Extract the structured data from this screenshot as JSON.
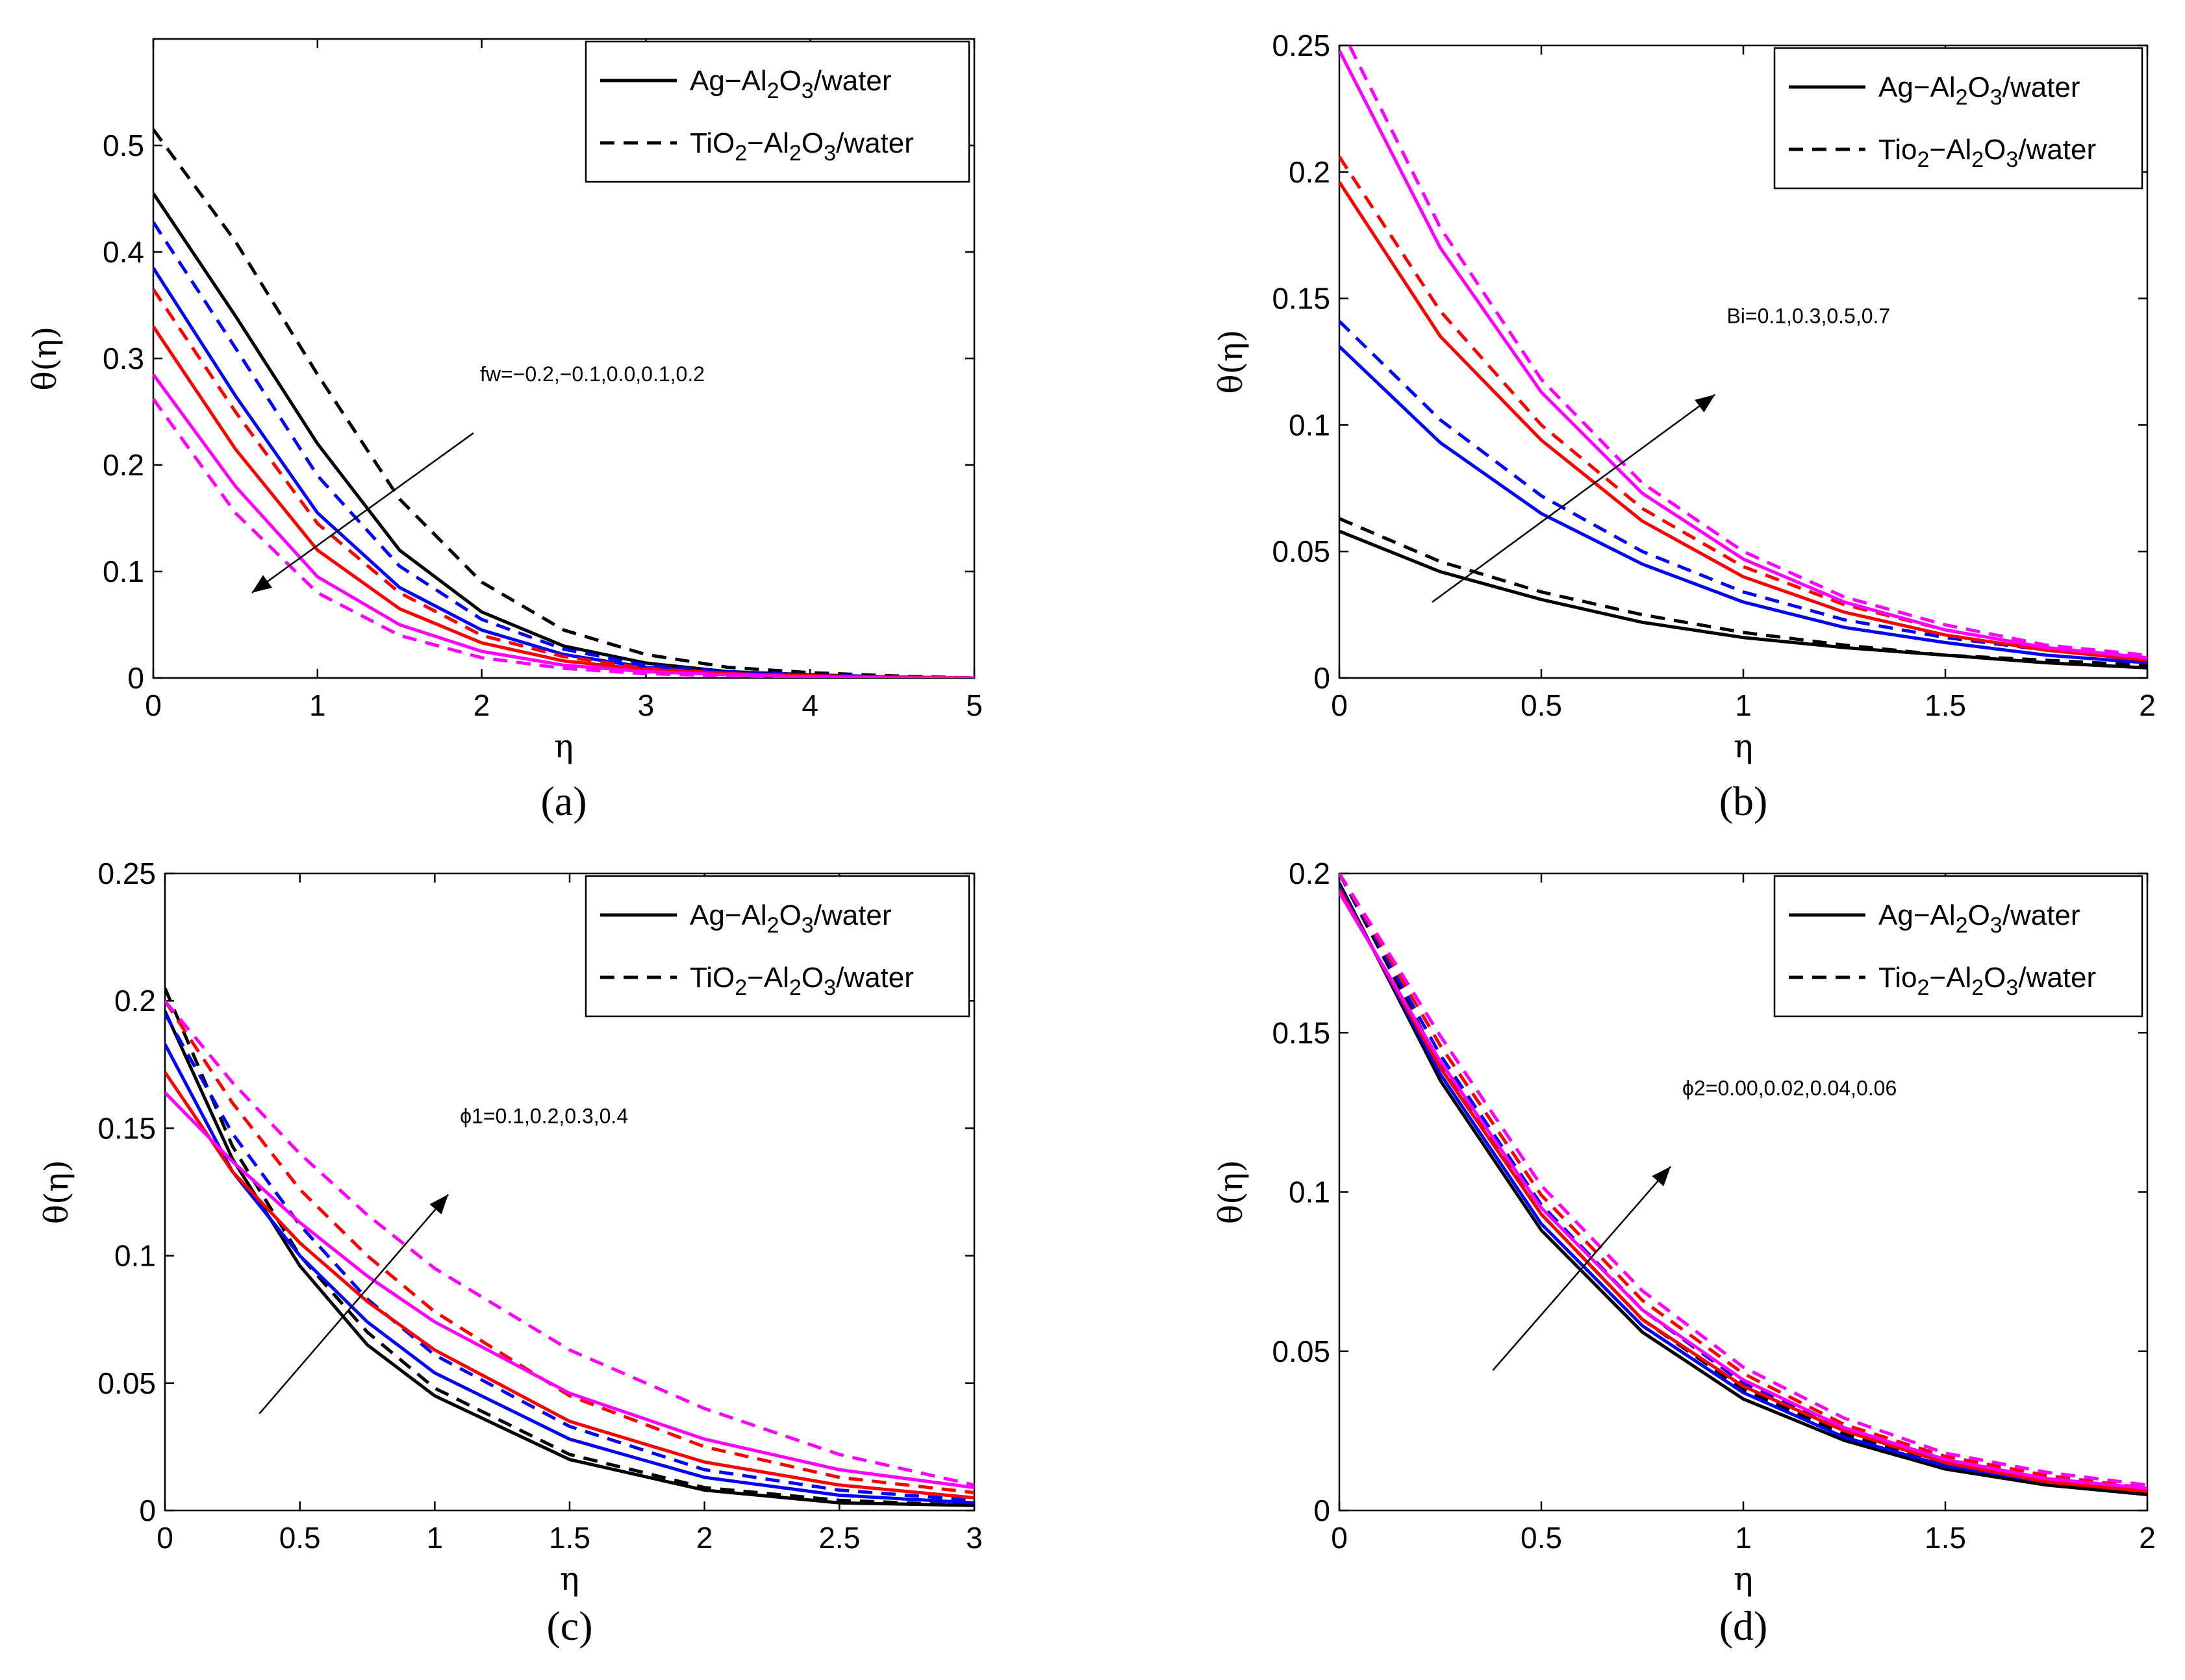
{
  "chart_data": [
    {
      "panel": "a",
      "type": "line",
      "caption": "(a)",
      "xlabel": "η",
      "ylabel": "θ(η)",
      "xlim": [
        0,
        5
      ],
      "ylim": [
        0,
        0.6
      ],
      "xticks": [
        0,
        1,
        2,
        3,
        4,
        5
      ],
      "yticks": [
        0,
        0.1,
        0.2,
        0.3,
        0.4,
        0.5
      ],
      "grid": false,
      "legend_position": "top-right",
      "legend": [
        "Ag−Al2O3/water",
        "TiO2−Al2O3/water"
      ],
      "annotation": {
        "text": "fw=−0.2,−0.1,0.0,0.1,0.2",
        "arrow_from": [
          1.95,
          0.23
        ],
        "arrow_to": [
          0.6,
          0.08
        ]
      },
      "series": [
        {
          "name": "Ag−Al2O3/water fw=−0.2",
          "color": "#000000",
          "dash": "solid",
          "x": [
            0,
            0.5,
            1,
            1.5,
            2,
            2.5,
            3,
            3.5,
            4,
            4.5,
            5
          ],
          "y": [
            0.455,
            0.34,
            0.22,
            0.12,
            0.062,
            0.03,
            0.014,
            0.006,
            0.003,
            0.001,
            0.0
          ]
        },
        {
          "name": "TiO2−Al2O3/water fw=−0.2",
          "color": "#000000",
          "dash": "dashed",
          "x": [
            0,
            0.5,
            1,
            1.5,
            2,
            2.5,
            3,
            3.5,
            4,
            4.5,
            5
          ],
          "y": [
            0.515,
            0.41,
            0.285,
            0.168,
            0.09,
            0.045,
            0.022,
            0.01,
            0.005,
            0.002,
            0.0
          ]
        },
        {
          "name": "Ag−Al2O3/water fw=−0.1",
          "color": "#0000ff",
          "dash": "solid",
          "x": [
            0,
            0.5,
            1,
            1.5,
            2,
            2.5,
            3,
            3.5,
            4,
            4.5,
            5
          ],
          "y": [
            0.385,
            0.265,
            0.155,
            0.085,
            0.045,
            0.022,
            0.01,
            0.005,
            0.002,
            0.001,
            0.0
          ]
        },
        {
          "name": "TiO2−Al2O3/water fw=−0.1",
          "color": "#0000ff",
          "dash": "dashed",
          "x": [
            0,
            0.5,
            1,
            1.5,
            2,
            2.5,
            3,
            3.5,
            4,
            4.5,
            5
          ],
          "y": [
            0.428,
            0.31,
            0.19,
            0.105,
            0.055,
            0.027,
            0.012,
            0.006,
            0.003,
            0.001,
            0.0
          ]
        },
        {
          "name": "Ag−Al2O3/water fw=0.0",
          "color": "#ff0000",
          "dash": "solid",
          "x": [
            0,
            0.5,
            1,
            1.5,
            2,
            2.5,
            3,
            3.5,
            4,
            4.5,
            5
          ],
          "y": [
            0.33,
            0.215,
            0.12,
            0.065,
            0.033,
            0.016,
            0.008,
            0.004,
            0.002,
            0.001,
            0.0
          ]
        },
        {
          "name": "TiO2−Al2O3/water fw=0.0",
          "color": "#ff0000",
          "dash": "dashed",
          "x": [
            0,
            0.5,
            1,
            1.5,
            2,
            2.5,
            3,
            3.5,
            4,
            4.5,
            5
          ],
          "y": [
            0.365,
            0.25,
            0.145,
            0.08,
            0.04,
            0.02,
            0.009,
            0.004,
            0.002,
            0.001,
            0.0
          ]
        },
        {
          "name": "Ag−Al2O3/water fw=0.1",
          "color": "#ff00ff",
          "dash": "solid",
          "x": [
            0,
            0.5,
            1,
            1.5,
            2,
            2.5,
            3,
            3.5,
            4,
            4.5,
            5
          ],
          "y": [
            0.285,
            0.18,
            0.095,
            0.05,
            0.025,
            0.012,
            0.006,
            0.003,
            0.001,
            0.0,
            0.0
          ]
        },
        {
          "name": "TiO2−Al2O3/water fw=0.1",
          "color": "#ff00ff",
          "dash": "dashed",
          "x": [
            0,
            0.5,
            1,
            1.5,
            2,
            2.5,
            3,
            3.5,
            4,
            4.5,
            5
          ],
          "y": [
            0.262,
            0.155,
            0.08,
            0.04,
            0.019,
            0.009,
            0.004,
            0.002,
            0.001,
            0.0,
            0.0
          ]
        }
      ]
    },
    {
      "panel": "b",
      "type": "line",
      "caption": "(b)",
      "xlabel": "η",
      "ylabel": "θ(η)",
      "xlim": [
        0,
        2
      ],
      "ylim": [
        0,
        0.25
      ],
      "xticks": [
        0,
        0.5,
        1,
        1.5,
        2
      ],
      "yticks": [
        0,
        0.05,
        0.1,
        0.15,
        0.2,
        0.25
      ],
      "grid": false,
      "legend_position": "top-right",
      "legend": [
        "Ag−Al2O3/water",
        "Tio2−Al2O3/water"
      ],
      "annotation": {
        "text": "Bi=0.1,0.3,0.5,0.7",
        "arrow_from": [
          0.23,
          0.03
        ],
        "arrow_to": [
          0.93,
          0.112
        ]
      },
      "series": [
        {
          "name": "Ag−Al2O3/water Bi=0.1",
          "color": "#000000",
          "dash": "solid",
          "x": [
            0,
            0.25,
            0.5,
            0.75,
            1,
            1.25,
            1.5,
            1.75,
            2
          ],
          "y": [
            0.058,
            0.042,
            0.031,
            0.022,
            0.016,
            0.012,
            0.009,
            0.006,
            0.004
          ]
        },
        {
          "name": "Tio2−Al2O3/water Bi=0.1",
          "color": "#000000",
          "dash": "dashed",
          "x": [
            0,
            0.25,
            0.5,
            0.75,
            1,
            1.25,
            1.5,
            1.75,
            2
          ],
          "y": [
            0.063,
            0.046,
            0.034,
            0.025,
            0.018,
            0.013,
            0.009,
            0.007,
            0.005
          ]
        },
        {
          "name": "Ag−Al2O3/water Bi=0.3",
          "color": "#0000ff",
          "dash": "solid",
          "x": [
            0,
            0.25,
            0.5,
            0.75,
            1,
            1.25,
            1.5,
            1.75,
            2
          ],
          "y": [
            0.131,
            0.093,
            0.065,
            0.045,
            0.03,
            0.02,
            0.014,
            0.009,
            0.006
          ]
        },
        {
          "name": "Tio2−Al2O3/water Bi=0.3",
          "color": "#0000ff",
          "dash": "dashed",
          "x": [
            0,
            0.25,
            0.5,
            0.75,
            1,
            1.25,
            1.5,
            1.75,
            2
          ],
          "y": [
            0.141,
            0.102,
            0.072,
            0.05,
            0.034,
            0.023,
            0.016,
            0.011,
            0.007
          ]
        },
        {
          "name": "Ag−Al2O3/water Bi=0.5",
          "color": "#ff0000",
          "dash": "solid",
          "x": [
            0,
            0.25,
            0.5,
            0.75,
            1,
            1.25,
            1.5,
            1.75,
            2
          ],
          "y": [
            0.196,
            0.135,
            0.094,
            0.062,
            0.04,
            0.026,
            0.017,
            0.011,
            0.007
          ]
        },
        {
          "name": "Tio2−Al2O3/water Bi=0.5",
          "color": "#ff0000",
          "dash": "dashed",
          "x": [
            0,
            0.25,
            0.5,
            0.75,
            1,
            1.25,
            1.5,
            1.75,
            2
          ],
          "y": [
            0.206,
            0.145,
            0.1,
            0.067,
            0.044,
            0.029,
            0.019,
            0.012,
            0.008
          ]
        },
        {
          "name": "Ag−Al2O3/water Bi=0.7",
          "color": "#ff00ff",
          "dash": "solid",
          "x": [
            0,
            0.25,
            0.5,
            0.75,
            1,
            1.25,
            1.5,
            1.75,
            2
          ],
          "y": [
            0.248,
            0.17,
            0.113,
            0.073,
            0.047,
            0.03,
            0.019,
            0.012,
            0.008
          ]
        },
        {
          "name": "Tio2−Al2O3/water Bi=0.7",
          "color": "#ff00ff",
          "dash": "dashed",
          "x": [
            0,
            0.25,
            0.5,
            0.75,
            1,
            1.25,
            1.5,
            1.75,
            2
          ],
          "y": [
            0.258,
            0.178,
            0.118,
            0.077,
            0.05,
            0.032,
            0.021,
            0.013,
            0.009
          ]
        }
      ]
    },
    {
      "panel": "c",
      "type": "line",
      "caption": "(c)",
      "xlabel": "η",
      "ylabel": "θ(η)",
      "xlim": [
        0,
        3
      ],
      "ylim": [
        0,
        0.25
      ],
      "xticks": [
        0,
        0.5,
        1,
        1.5,
        2,
        2.5,
        3
      ],
      "yticks": [
        0,
        0.05,
        0.1,
        0.15,
        0.2,
        0.25
      ],
      "grid": false,
      "legend_position": "top-right",
      "legend": [
        "Ag−Al2O3/water",
        "TiO2−Al2O3/water"
      ],
      "annotation": {
        "text": "ϕ1=0.1,0.2,0.3,0.4",
        "arrow_from": [
          0.35,
          0.038
        ],
        "arrow_to": [
          1.05,
          0.124
        ]
      },
      "series": [
        {
          "name": "Ag−Al2O3/water ϕ1=0.1",
          "color": "#000000",
          "dash": "solid",
          "x": [
            0,
            0.25,
            0.5,
            0.75,
            1,
            1.5,
            2,
            2.5,
            3
          ],
          "y": [
            0.196,
            0.138,
            0.096,
            0.065,
            0.045,
            0.02,
            0.008,
            0.003,
            0.002
          ]
        },
        {
          "name": "TiO2−Al2O3/water ϕ1=0.1",
          "color": "#000000",
          "dash": "dashed",
          "x": [
            0,
            0.25,
            0.5,
            0.75,
            1,
            1.5,
            2,
            2.5,
            3
          ],
          "y": [
            0.205,
            0.143,
            0.1,
            0.07,
            0.048,
            0.022,
            0.009,
            0.004,
            0.002
          ]
        },
        {
          "name": "Ag−Al2O3/water ϕ1=0.2",
          "color": "#0000ff",
          "dash": "solid",
          "x": [
            0,
            0.25,
            0.5,
            0.75,
            1,
            1.5,
            2,
            2.5,
            3
          ],
          "y": [
            0.183,
            0.133,
            0.1,
            0.074,
            0.054,
            0.028,
            0.013,
            0.006,
            0.003
          ]
        },
        {
          "name": "TiO2−Al2O3/water ϕ1=0.2",
          "color": "#0000ff",
          "dash": "dashed",
          "x": [
            0,
            0.25,
            0.5,
            0.75,
            1,
            1.5,
            2,
            2.5,
            3
          ],
          "y": [
            0.195,
            0.148,
            0.112,
            0.083,
            0.061,
            0.033,
            0.016,
            0.008,
            0.004
          ]
        },
        {
          "name": "Ag−Al2O3/water ϕ1=0.3",
          "color": "#ff0000",
          "dash": "solid",
          "x": [
            0,
            0.25,
            0.5,
            0.75,
            1,
            1.5,
            2,
            2.5,
            3
          ],
          "y": [
            0.172,
            0.133,
            0.105,
            0.082,
            0.063,
            0.035,
            0.019,
            0.01,
            0.005
          ]
        },
        {
          "name": "TiO2−Al2O3/water ϕ1=0.3",
          "color": "#ff0000",
          "dash": "dashed",
          "x": [
            0,
            0.25,
            0.5,
            0.75,
            1,
            1.5,
            2,
            2.5,
            3
          ],
          "y": [
            0.2,
            0.16,
            0.126,
            0.1,
            0.078,
            0.045,
            0.025,
            0.013,
            0.007
          ]
        },
        {
          "name": "Ag−Al2O3/water ϕ1=0.4",
          "color": "#ff00ff",
          "dash": "solid",
          "x": [
            0,
            0.25,
            0.5,
            0.75,
            1,
            1.5,
            2,
            2.5,
            3
          ],
          "y": [
            0.164,
            0.137,
            0.113,
            0.092,
            0.074,
            0.046,
            0.028,
            0.016,
            0.009
          ]
        },
        {
          "name": "TiO2−Al2O3/water ϕ1=0.4",
          "color": "#ff00ff",
          "dash": "dashed",
          "x": [
            0,
            0.25,
            0.5,
            0.75,
            1,
            1.5,
            2,
            2.5,
            3
          ],
          "y": [
            0.2,
            0.168,
            0.14,
            0.116,
            0.095,
            0.063,
            0.04,
            0.022,
            0.01
          ]
        }
      ]
    },
    {
      "panel": "d",
      "type": "line",
      "caption": "(d)",
      "xlabel": "η",
      "ylabel": "θ(η)",
      "xlim": [
        0,
        2
      ],
      "ylim": [
        0,
        0.2
      ],
      "xticks": [
        0,
        0.5,
        1,
        1.5,
        2
      ],
      "yticks": [
        0,
        0.05,
        0.1,
        0.15,
        0.2
      ],
      "grid": false,
      "legend_position": "top-right",
      "legend": [
        "Ag−Al2O3/water",
        "Tio2−Al2O3/water"
      ],
      "annotation": {
        "text": "ϕ2=0.00,0.02,0.04,0.06",
        "arrow_from": [
          0.38,
          0.044
        ],
        "arrow_to": [
          0.82,
          0.108
        ]
      },
      "series": [
        {
          "name": "Ag−Al2O3/water ϕ2=0.00",
          "color": "#000000",
          "dash": "solid",
          "x": [
            0,
            0.25,
            0.5,
            0.75,
            1,
            1.25,
            1.5,
            1.75,
            2
          ],
          "y": [
            0.197,
            0.135,
            0.088,
            0.056,
            0.035,
            0.022,
            0.013,
            0.008,
            0.005
          ]
        },
        {
          "name": "Tio2−Al2O3/water ϕ2=0.00",
          "color": "#000000",
          "dash": "dashed",
          "x": [
            0,
            0.25,
            0.5,
            0.75,
            1,
            1.25,
            1.5,
            1.75,
            2
          ],
          "y": [
            0.2,
            0.14,
            0.093,
            0.06,
            0.038,
            0.024,
            0.015,
            0.009,
            0.006
          ]
        },
        {
          "name": "Ag−Al2O3/water ϕ2=0.02",
          "color": "#0000ff",
          "dash": "solid",
          "x": [
            0,
            0.25,
            0.5,
            0.75,
            1,
            1.25,
            1.5,
            1.75,
            2
          ],
          "y": [
            0.196,
            0.137,
            0.09,
            0.058,
            0.037,
            0.023,
            0.014,
            0.009,
            0.006
          ]
        },
        {
          "name": "Tio2−Al2O3/water ϕ2=0.02",
          "color": "#0000ff",
          "dash": "dashed",
          "x": [
            0,
            0.25,
            0.5,
            0.75,
            1,
            1.25,
            1.5,
            1.75,
            2
          ],
          "y": [
            0.2,
            0.143,
            0.096,
            0.063,
            0.04,
            0.025,
            0.016,
            0.01,
            0.006
          ]
        },
        {
          "name": "Ag−Al2O3/water ϕ2=0.04",
          "color": "#ff0000",
          "dash": "solid",
          "x": [
            0,
            0.25,
            0.5,
            0.75,
            1,
            1.25,
            1.5,
            1.75,
            2
          ],
          "y": [
            0.195,
            0.139,
            0.093,
            0.06,
            0.039,
            0.025,
            0.015,
            0.009,
            0.006
          ]
        },
        {
          "name": "Tio2−Al2O3/water ϕ2=0.04",
          "color": "#ff0000",
          "dash": "dashed",
          "x": [
            0,
            0.25,
            0.5,
            0.75,
            1,
            1.25,
            1.5,
            1.75,
            2
          ],
          "y": [
            0.2,
            0.146,
            0.099,
            0.066,
            0.043,
            0.027,
            0.017,
            0.011,
            0.007
          ]
        },
        {
          "name": "Ag−Al2O3/water ϕ2=0.06",
          "color": "#ff00ff",
          "dash": "solid",
          "x": [
            0,
            0.25,
            0.5,
            0.75,
            1,
            1.25,
            1.5,
            1.75,
            2
          ],
          "y": [
            0.194,
            0.141,
            0.095,
            0.063,
            0.041,
            0.026,
            0.016,
            0.01,
            0.007
          ]
        },
        {
          "name": "Tio2−Al2O3/water ϕ2=0.06",
          "color": "#ff00ff",
          "dash": "dashed",
          "x": [
            0,
            0.25,
            0.5,
            0.75,
            1,
            1.25,
            1.5,
            1.75,
            2
          ],
          "y": [
            0.2,
            0.149,
            0.102,
            0.069,
            0.045,
            0.029,
            0.018,
            0.012,
            0.008
          ]
        }
      ]
    }
  ]
}
